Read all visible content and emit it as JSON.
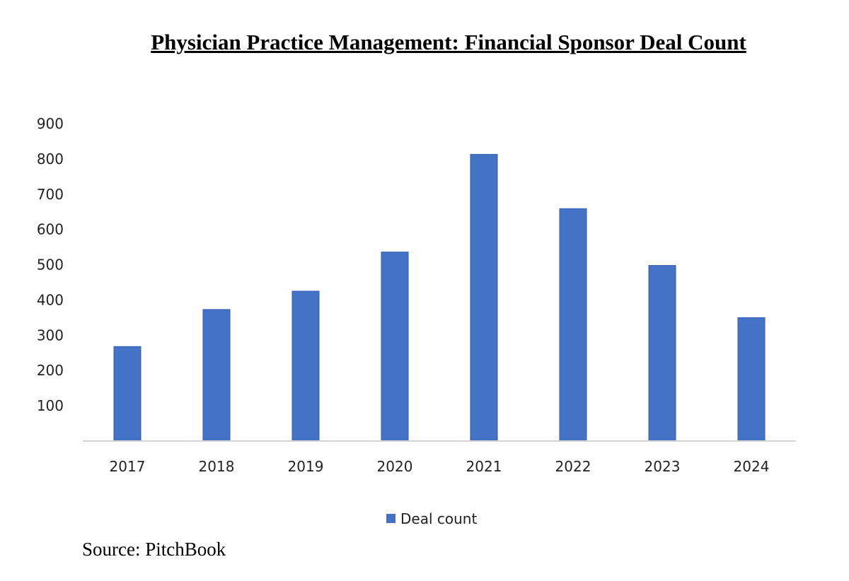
{
  "chart_data": {
    "type": "bar",
    "title": "Physician Practice Management: Financial Sponsor Deal Count",
    "categories": [
      "2017",
      "2018",
      "2019",
      "2020",
      "2021",
      "2022",
      "2023",
      "2024"
    ],
    "series": [
      {
        "name": "Deal count",
        "values": [
          268,
          373,
          425,
          536,
          813,
          659,
          498,
          350
        ],
        "color": "#4472C4"
      }
    ],
    "xlabel": "",
    "ylabel": "",
    "ylim": [
      0,
      900
    ],
    "yticks": [
      100,
      200,
      300,
      400,
      500,
      600,
      700,
      800,
      900
    ],
    "grid": false,
    "legend": "bottom-center"
  },
  "source": "Source: PitchBook"
}
